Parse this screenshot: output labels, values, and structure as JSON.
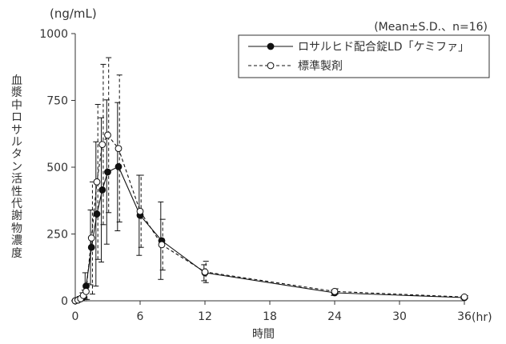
{
  "chart_data": {
    "type": "line",
    "y_unit": "(ng/mL)",
    "annotation": "(Mean±S.D.、n=16)",
    "xlabel": "時間",
    "x_unit": "(hr)",
    "ylabel": "血漿中ロサルタン活性代謝物濃度",
    "xlim": [
      0,
      36
    ],
    "ylim": [
      0,
      1000
    ],
    "x_ticks": [
      0,
      6,
      12,
      18,
      24,
      30,
      36
    ],
    "y_ticks": [
      0,
      250,
      500,
      750,
      1000
    ],
    "legend_position": "top-right",
    "grid": false,
    "x": [
      0,
      0.25,
      0.5,
      0.75,
      1,
      1.5,
      2,
      2.5,
      3,
      4,
      6,
      8,
      12,
      24,
      36
    ],
    "series": [
      {
        "name": "ロサルヒド配合錠LD「ケミファ」",
        "marker": "filled-circle",
        "line": "solid",
        "values": [
          0,
          3,
          8,
          15,
          55,
          200,
          325,
          415,
          482,
          502,
          320,
          225,
          105,
          30,
          12
        ],
        "sd": [
          0,
          3,
          8,
          15,
          50,
          140,
          270,
          270,
          270,
          240,
          150,
          145,
          30,
          10,
          5
        ]
      },
      {
        "name": "標準製剤",
        "marker": "open-circle",
        "line": "dashed",
        "values": [
          0,
          3,
          8,
          20,
          35,
          235,
          445,
          585,
          620,
          570,
          335,
          210,
          108,
          35,
          14
        ],
        "sd": [
          0,
          3,
          8,
          20,
          30,
          210,
          290,
          300,
          290,
          275,
          135,
          95,
          40,
          10,
          5
        ]
      }
    ],
    "colors": {
      "axis": "#333333",
      "series": "#111111"
    }
  }
}
